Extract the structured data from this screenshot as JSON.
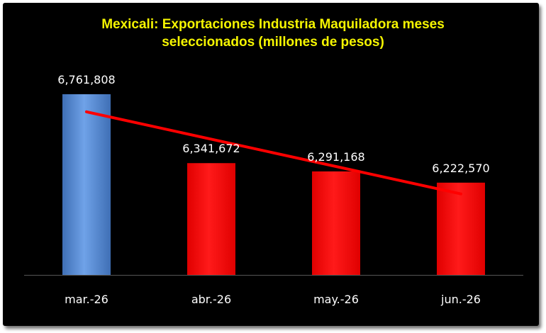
{
  "chart_data": {
    "type": "bar",
    "title_lines": [
      "Mexicali: Exportaciones Industria Maquiladora meses",
      "seleccionados (millones de pesos)"
    ],
    "categories": [
      "mar.-26",
      "abr.-26",
      "may.-26",
      "jun.-26"
    ],
    "values": [
      6761808,
      6341672,
      6291168,
      6222570
    ],
    "value_labels": [
      "6,761,808",
      "6,341,672",
      "6,291,168",
      "6,222,570"
    ],
    "bar_colors": [
      "#5b8fd6",
      "#ff0000",
      "#ff0000",
      "#ff0000"
    ],
    "trendline": {
      "type": "linear",
      "color": "#ff0000"
    },
    "xlabel": "",
    "ylabel": "",
    "grid": false,
    "legend": "none",
    "colors": {
      "background": "#000000",
      "title": "#f5f500",
      "axis": "#555555",
      "labels": "#ffffff"
    }
  }
}
